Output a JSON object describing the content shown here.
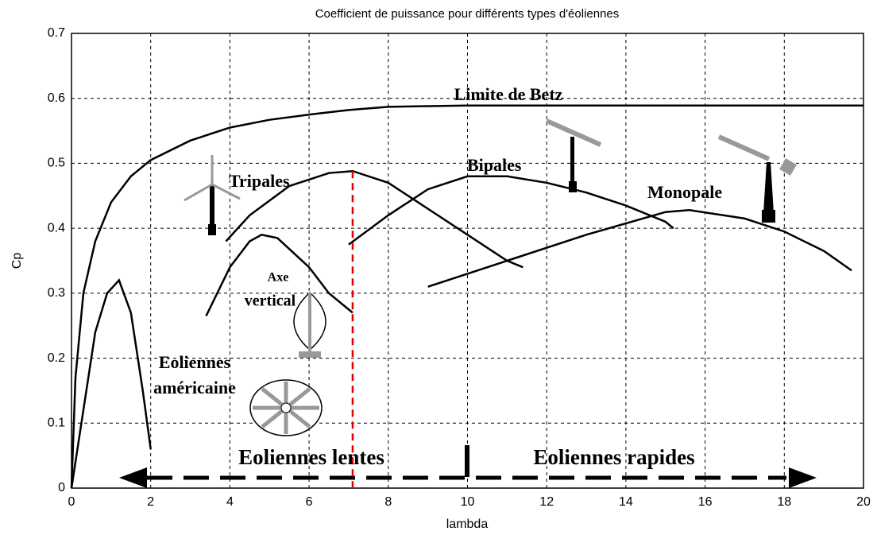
{
  "chart_data": {
    "type": "line",
    "title": "Coefficient de puissance pour différents types d'éoliennes",
    "x_label": "lambda",
    "y_label": "Cp",
    "xlim": [
      0,
      20
    ],
    "ylim": [
      0,
      0.7
    ],
    "xticks": [
      0,
      2,
      4,
      6,
      8,
      10,
      12,
      14,
      16,
      18,
      20
    ],
    "yticks": [
      0,
      0.1,
      0.2,
      0.3,
      0.4,
      0.5,
      0.6,
      0.7
    ],
    "grid": true,
    "series": [
      {
        "color": "#000000",
        "x": [
          0,
          0.1,
          0.3,
          0.6,
          1,
          1.5,
          2,
          3,
          4,
          5,
          6,
          7,
          8,
          10,
          20
        ],
        "y": [
          0,
          0.17,
          0.3,
          0.38,
          0.44,
          0.48,
          0.505,
          0.535,
          0.555,
          0.567,
          0.575,
          0.582,
          0.587,
          0.589,
          0.589
        ]
      },
      {
        "color": "#000000",
        "x": [
          0,
          0.3,
          0.6,
          0.9,
          1.2,
          1.5,
          1.8,
          2
        ],
        "y": [
          0,
          0.12,
          0.24,
          0.3,
          0.32,
          0.27,
          0.15,
          0.06
        ]
      },
      {
        "color": "#000000",
        "x": [
          3.4,
          4,
          4.5,
          4.8,
          5.2,
          6,
          6.5,
          7.1
        ],
        "y": [
          0.265,
          0.34,
          0.38,
          0.39,
          0.385,
          0.34,
          0.3,
          0.27
        ]
      },
      {
        "color": "#000000",
        "x": [
          3.9,
          4.5,
          5.5,
          6.5,
          7.1,
          8,
          9,
          10,
          11,
          11.4
        ],
        "y": [
          0.38,
          0.42,
          0.465,
          0.485,
          0.488,
          0.47,
          0.43,
          0.39,
          0.35,
          0.34
        ]
      },
      {
        "color": "#000000",
        "x": [
          7,
          8,
          9,
          10,
          11,
          12,
          13,
          14,
          15,
          15.2
        ],
        "y": [
          0.375,
          0.42,
          0.46,
          0.48,
          0.48,
          0.47,
          0.455,
          0.435,
          0.41,
          0.4
        ]
      },
      {
        "color": "#000000",
        "x": [
          9,
          11,
          13,
          15,
          15.6,
          17,
          18,
          19,
          19.7
        ],
        "y": [
          0.31,
          0.35,
          0.39,
          0.425,
          0.428,
          0.415,
          0.395,
          0.365,
          0.335
        ]
      }
    ],
    "vline": {
      "x": 7.1,
      "color": "#e00000"
    },
    "annotations": [
      "Limite de Betz",
      "Tripales",
      "Bipales",
      "Monopale",
      "Axe",
      "vertical",
      "Eoliennes",
      "américaine",
      "Eoliennes lentes",
      "Eoliennes rapides"
    ]
  }
}
